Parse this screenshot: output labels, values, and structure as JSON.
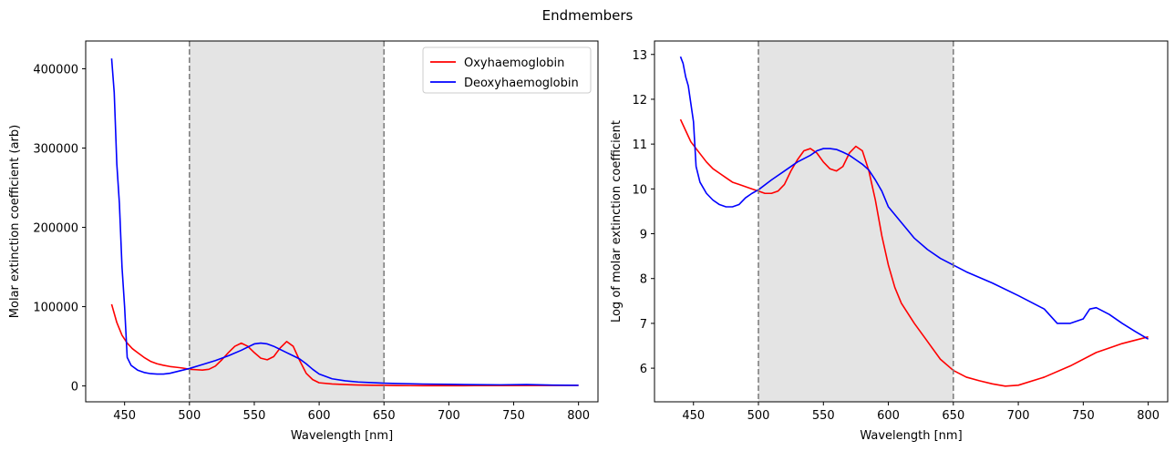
{
  "figure": {
    "title": "Endmembers"
  },
  "chart_data": [
    {
      "type": "line",
      "xlabel": "Wavelength [nm]",
      "ylabel": "Molar extinction coefficient (arb)",
      "xlim": [
        420,
        815
      ],
      "ylim": [
        -20000,
        435000
      ],
      "xticks": [
        450,
        500,
        550,
        600,
        650,
        700,
        750,
        800
      ],
      "yticks": [
        0,
        100000,
        200000,
        300000,
        400000
      ],
      "ytick_labels": [
        "0",
        "100000",
        "200000",
        "300000",
        "400000"
      ],
      "shaded_region": [
        500,
        650
      ],
      "vlines": [
        500,
        650
      ],
      "legend": {
        "location": "top-right",
        "entries": [
          "Oxyhaemoglobin",
          "Deoxyhaemoglobin"
        ]
      },
      "series": [
        {
          "name": "Oxyhaemoglobin",
          "color": "#ff0000",
          "x": [
            440,
            444,
            448,
            452,
            456,
            460,
            465,
            470,
            475,
            480,
            485,
            490,
            495,
            500,
            505,
            510,
            515,
            520,
            525,
            530,
            535,
            540,
            545,
            550,
            555,
            560,
            565,
            570,
            575,
            580,
            585,
            590,
            595,
            600,
            610,
            620,
            630,
            640,
            650,
            660,
            670,
            680,
            690,
            700,
            720,
            740,
            760,
            780,
            800
          ],
          "y": [
            103000,
            80000,
            64000,
            54000,
            47000,
            42000,
            36000,
            31000,
            28000,
            26000,
            24500,
            23500,
            22500,
            21000,
            20500,
            20000,
            21000,
            25000,
            33000,
            42000,
            50000,
            54000,
            50000,
            42000,
            35000,
            33000,
            37000,
            48000,
            56000,
            50000,
            32000,
            16000,
            8000,
            4000,
            2500,
            1700,
            1200,
            900,
            700,
            500,
            400,
            350,
            300,
            320,
            400,
            500,
            600,
            650,
            750
          ]
        },
        {
          "name": "Deoxyhaemoglobin",
          "color": "#0000ff",
          "x": [
            440,
            442,
            444,
            446,
            448,
            450,
            452,
            455,
            460,
            465,
            470,
            475,
            480,
            485,
            490,
            495,
            500,
            510,
            520,
            530,
            540,
            545,
            550,
            555,
            560,
            565,
            570,
            575,
            580,
            585,
            590,
            595,
            600,
            610,
            620,
            630,
            640,
            650,
            660,
            680,
            700,
            720,
            740,
            760,
            780,
            800
          ],
          "y": [
            413000,
            370000,
            280000,
            230000,
            150000,
            100000,
            36000,
            26000,
            20000,
            17000,
            15500,
            15000,
            15000,
            16000,
            18000,
            20000,
            22000,
            27000,
            32000,
            38000,
            45000,
            49000,
            53000,
            54000,
            53000,
            50000,
            46000,
            42000,
            38000,
            34000,
            28000,
            21000,
            15000,
            9000,
            6500,
            5000,
            4200,
            3500,
            3000,
            2400,
            2000,
            1600,
            1400,
            1700,
            1100,
            800
          ]
        }
      ]
    },
    {
      "type": "line",
      "xlabel": "Wavelength [nm]",
      "ylabel": "Log of molar extinction coefficient",
      "xlim": [
        420,
        815
      ],
      "ylim": [
        5.25,
        13.3
      ],
      "xticks": [
        450,
        500,
        550,
        600,
        650,
        700,
        750,
        800
      ],
      "yticks": [
        6,
        7,
        8,
        9,
        10,
        11,
        12,
        13
      ],
      "ytick_labels": [
        "6",
        "7",
        "8",
        "9",
        "10",
        "11",
        "12",
        "13"
      ],
      "shaded_region": [
        500,
        650
      ],
      "vlines": [
        500,
        650
      ],
      "series": [
        {
          "name": "Oxyhaemoglobin",
          "color": "#ff0000",
          "x": [
            440,
            444,
            448,
            452,
            456,
            460,
            465,
            470,
            475,
            480,
            485,
            490,
            495,
            500,
            505,
            510,
            515,
            520,
            525,
            530,
            535,
            540,
            545,
            550,
            555,
            560,
            565,
            570,
            575,
            580,
            585,
            590,
            595,
            600,
            605,
            610,
            620,
            630,
            640,
            650,
            660,
            670,
            680,
            690,
            700,
            720,
            740,
            760,
            780,
            800
          ],
          "y": [
            11.55,
            11.3,
            11.05,
            10.9,
            10.75,
            10.6,
            10.45,
            10.35,
            10.25,
            10.15,
            10.1,
            10.05,
            10.0,
            9.95,
            9.9,
            9.9,
            9.95,
            10.1,
            10.4,
            10.65,
            10.85,
            10.9,
            10.8,
            10.6,
            10.45,
            10.4,
            10.5,
            10.8,
            10.95,
            10.85,
            10.4,
            9.75,
            8.95,
            8.3,
            7.8,
            7.45,
            7.0,
            6.6,
            6.2,
            5.95,
            5.8,
            5.72,
            5.65,
            5.6,
            5.62,
            5.8,
            6.05,
            6.35,
            6.55,
            6.7
          ]
        },
        {
          "name": "Deoxyhaemoglobin",
          "color": "#0000ff",
          "x": [
            440,
            442,
            444,
            446,
            448,
            450,
            452,
            455,
            460,
            465,
            470,
            475,
            480,
            485,
            490,
            495,
            500,
            510,
            520,
            530,
            540,
            545,
            550,
            555,
            560,
            565,
            570,
            575,
            580,
            585,
            590,
            595,
            600,
            610,
            620,
            630,
            640,
            650,
            660,
            680,
            700,
            720,
            730,
            740,
            750,
            755,
            760,
            770,
            780,
            790,
            800
          ],
          "y": [
            12.95,
            12.8,
            12.5,
            12.3,
            11.9,
            11.5,
            10.5,
            10.15,
            9.9,
            9.75,
            9.65,
            9.6,
            9.6,
            9.65,
            9.8,
            9.9,
            9.98,
            10.2,
            10.4,
            10.6,
            10.75,
            10.85,
            10.9,
            10.9,
            10.88,
            10.82,
            10.75,
            10.65,
            10.55,
            10.42,
            10.2,
            9.95,
            9.6,
            9.25,
            8.9,
            8.65,
            8.45,
            8.3,
            8.15,
            7.9,
            7.62,
            7.32,
            7.0,
            7.0,
            7.1,
            7.32,
            7.35,
            7.2,
            7.0,
            6.82,
            6.65
          ]
        }
      ]
    }
  ]
}
